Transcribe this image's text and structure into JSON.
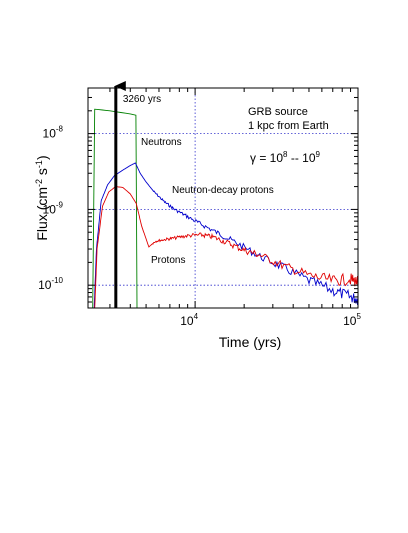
{
  "chart_data": {
    "type": "line",
    "xlabel": "Time (yrs)",
    "ylabel_main": "Flux (cm",
    "ylabel_sup1": "-2",
    "ylabel_mid": " s",
    "ylabel_sup2": "-1",
    "ylabel_end": ")",
    "x_scale": "log",
    "y_scale": "log",
    "xlim": [
      2200,
      100000
    ],
    "ylim": [
      5e-11,
      4e-08
    ],
    "x_ticks": [
      {
        "value": 10000,
        "base": "10",
        "exp": "4"
      },
      {
        "value": 100000,
        "base": "10",
        "exp": "5"
      }
    ],
    "y_ticks": [
      {
        "value": 1e-10,
        "base": "10",
        "exp": "-10"
      },
      {
        "value": 1e-09,
        "base": "10",
        "exp": "-9"
      },
      {
        "value": 1e-08,
        "base": "10",
        "exp": "-8"
      }
    ],
    "grid": "dotted blue at major ticks",
    "annotations": {
      "source_line1": "GRB source",
      "source_line2": "1 kpc from Earth",
      "gamma_prefix": "γ = 10",
      "gamma_exp1": "8",
      "gamma_mid": " -- 10",
      "gamma_exp2": "9",
      "arrow_label": "3260 yrs",
      "arrow_x": 3260
    },
    "series": [
      {
        "name": "Neutrons",
        "color": "#008000",
        "points": [
          [
            2350,
            5e-11
          ],
          [
            2420,
            2.1e-08
          ],
          [
            2700,
            2.05e-08
          ],
          [
            3000,
            2e-08
          ],
          [
            3500,
            1.9e-08
          ],
          [
            4000,
            1.82e-08
          ],
          [
            4330,
            1.75e-08
          ],
          [
            4400,
            5e-11
          ]
        ]
      },
      {
        "name": "Neutron-decay protons",
        "color": "#0000cc",
        "points": [
          [
            2400,
            5e-11
          ],
          [
            2480,
            3e-10
          ],
          [
            2650,
            1.3e-09
          ],
          [
            2900,
            2.1e-09
          ],
          [
            3200,
            2.8e-09
          ],
          [
            3600,
            3.3e-09
          ],
          [
            4000,
            3.8e-09
          ],
          [
            4300,
            4.1e-09
          ],
          [
            4600,
            3e-09
          ],
          [
            5000,
            2.3e-09
          ],
          [
            5600,
            1.7e-09
          ],
          [
            6500,
            1.25e-09
          ],
          [
            7500,
            1e-09
          ],
          [
            9000,
            8e-10
          ],
          [
            11000,
            6.3e-10
          ],
          [
            14000,
            4.8e-10
          ],
          [
            18000,
            3.6e-10
          ],
          [
            25000,
            2.4e-10
          ],
          [
            35000,
            1.7e-10
          ],
          [
            50000,
            1.15e-10
          ],
          [
            70000,
            8.5e-11
          ],
          [
            90000,
            7e-11
          ],
          [
            100000,
            6.5e-11
          ]
        ]
      },
      {
        "name": "Protons",
        "color": "#e00000",
        "points": [
          [
            2420,
            5e-11
          ],
          [
            2500,
            3e-10
          ],
          [
            2700,
            1.1e-09
          ],
          [
            2950,
            1.7e-09
          ],
          [
            3250,
            2e-09
          ],
          [
            3600,
            1.95e-09
          ],
          [
            4000,
            1.6e-09
          ],
          [
            4350,
            1.2e-09
          ],
          [
            4700,
            6e-10
          ],
          [
            5200,
            3.2e-10
          ],
          [
            5700,
            3.8e-10
          ],
          [
            6500,
            4e-10
          ],
          [
            7500,
            4.2e-10
          ],
          [
            9000,
            4.5e-10
          ],
          [
            11000,
            4.6e-10
          ],
          [
            13000,
            4.3e-10
          ],
          [
            16000,
            3.6e-10
          ],
          [
            20000,
            2.9e-10
          ],
          [
            25000,
            2.5e-10
          ],
          [
            35000,
            1.8e-10
          ],
          [
            50000,
            1.35e-10
          ],
          [
            70000,
            1.15e-10
          ],
          [
            90000,
            1.2e-10
          ],
          [
            100000,
            1.1e-10
          ]
        ]
      }
    ]
  }
}
